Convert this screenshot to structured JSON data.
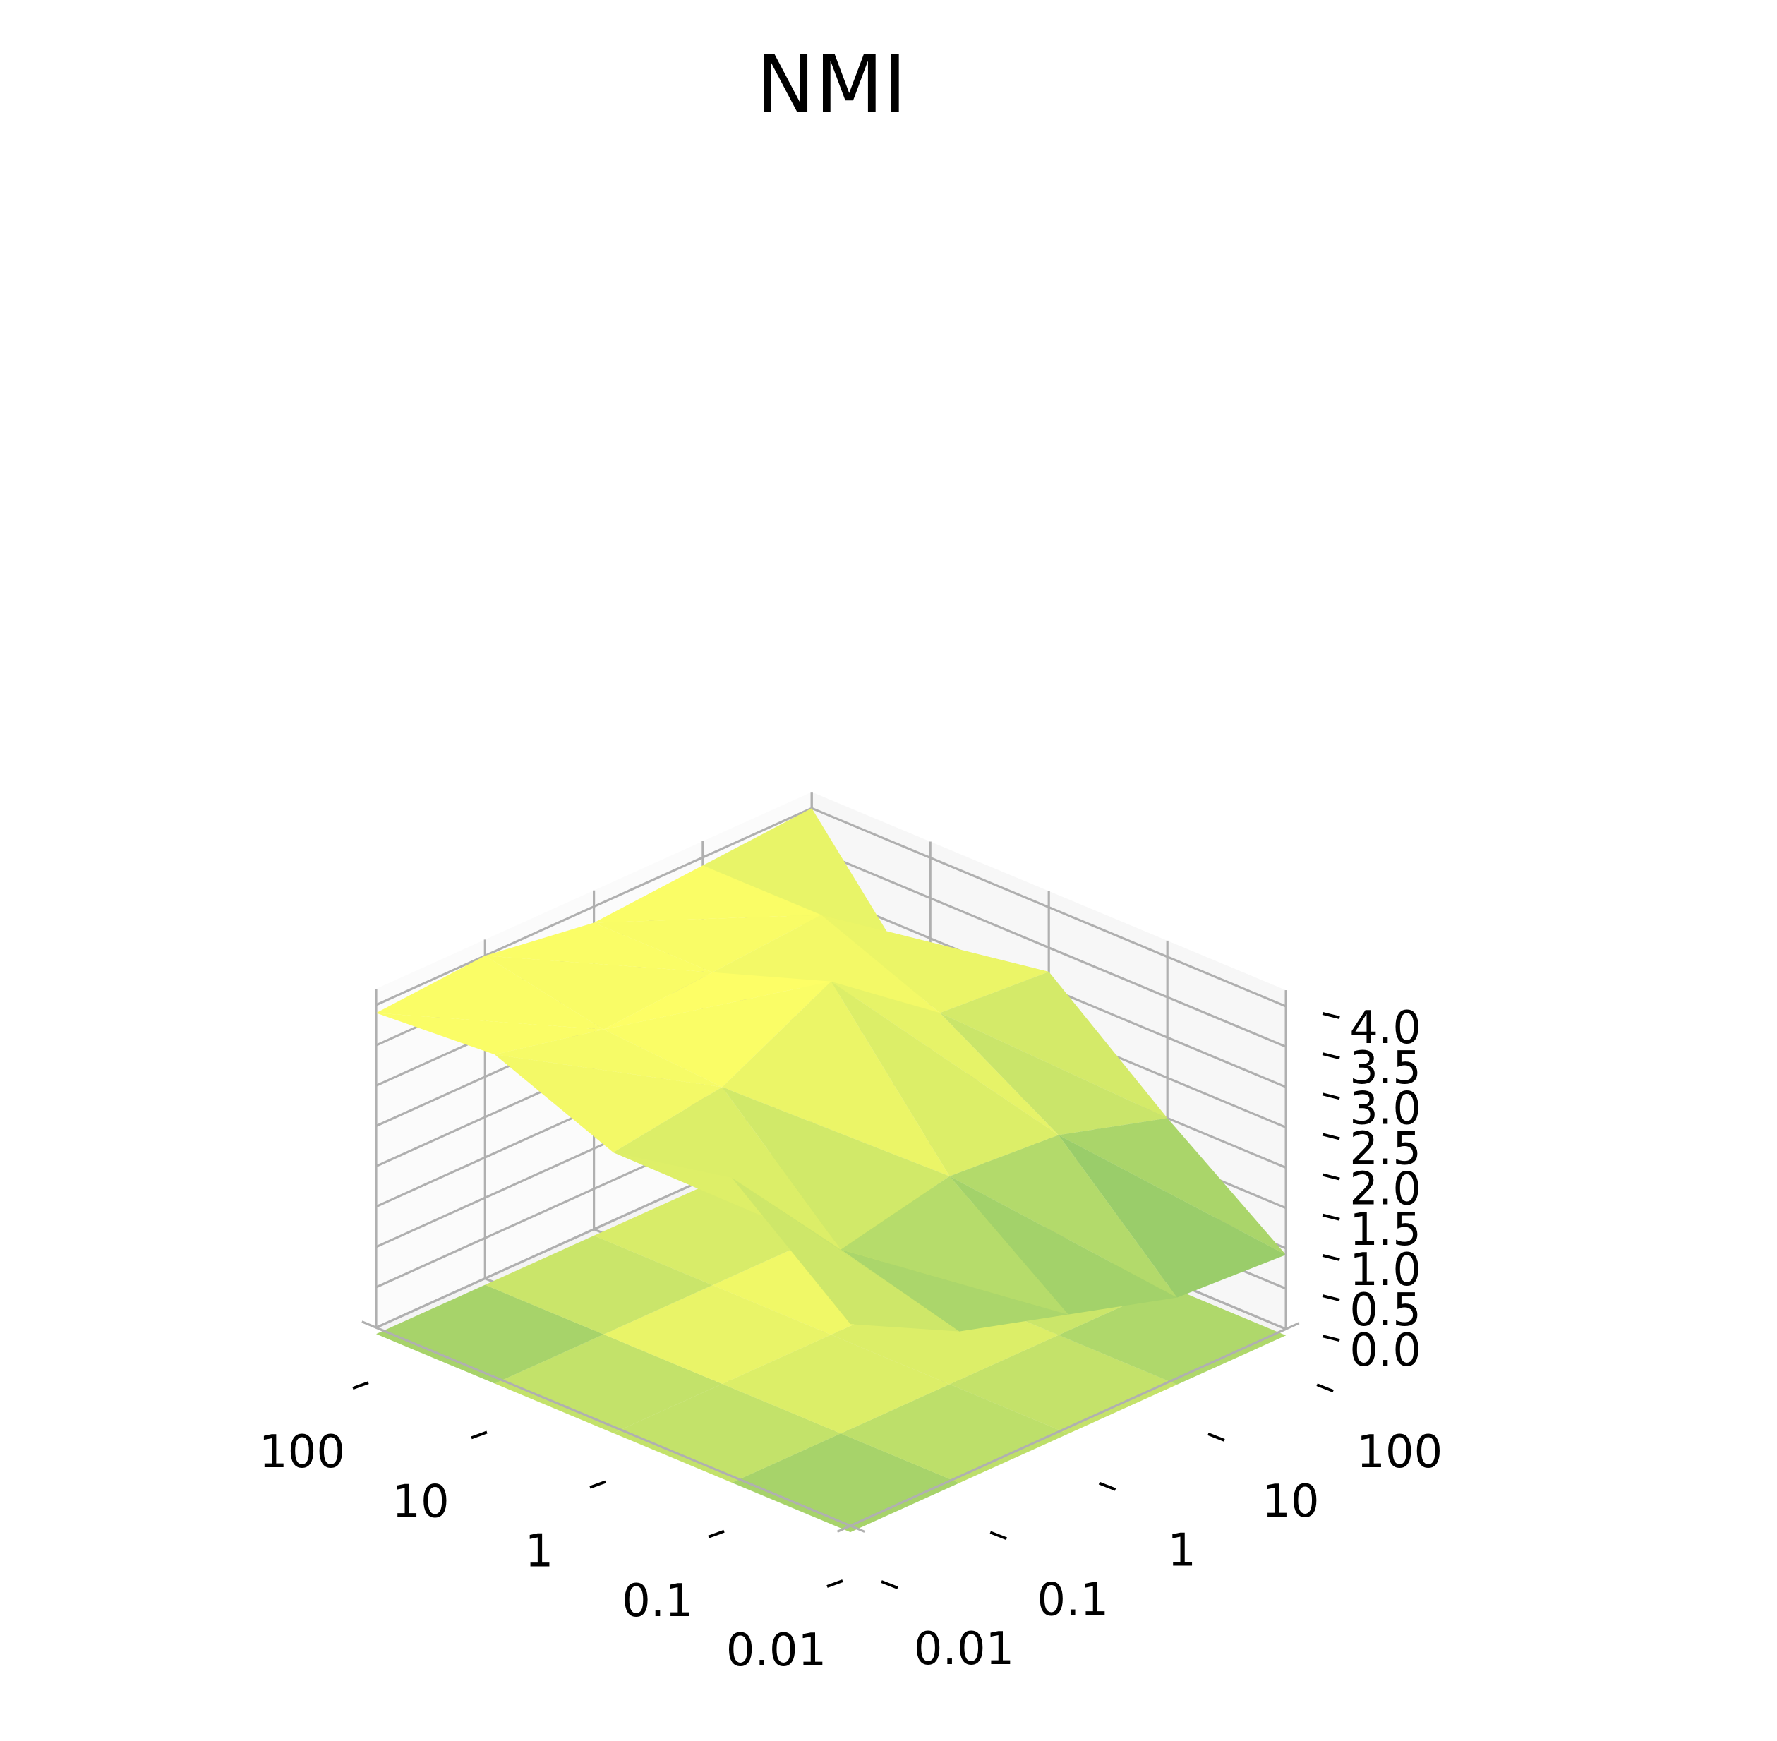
{
  "chart_data": {
    "type": "surface3d",
    "title": "NMI",
    "x_ticks": [
      "0.01",
      "0.1",
      "1",
      "10",
      "100"
    ],
    "y_ticks": [
      "0.01",
      "0.1",
      "1",
      "10",
      "100"
    ],
    "z_ticks": [
      "0.0",
      "0.5",
      "1.0",
      "1.5",
      "2.0",
      "2.5",
      "3.0",
      "3.5",
      "4.0"
    ],
    "zlim": [
      0,
      4
    ],
    "grid": true,
    "colormap": "summer_r",
    "colors": {
      "high": "#ffff66",
      "mid": "#b5db6b",
      "low": "#55a866"
    },
    "surface": [
      [
        2.5,
        1.8,
        1.4,
        1.0,
        0.92
      ],
      [
        3.7,
        2.2,
        2.5,
        2.4,
        2.0
      ],
      [
        3.4,
        3.6,
        4.3,
        3.3,
        3.2
      ],
      [
        4.0,
        3.7,
        3.8,
        3.9,
        2.2
      ],
      [
        3.9,
        4.0,
        3.8,
        3.9,
        4.0
      ]
    ],
    "projection": [
      [
        1.3,
        1.6,
        2.5,
        2.3,
        1.0
      ],
      [
        1.6,
        2.3,
        2.5,
        2.3,
        1.9
      ],
      [
        2.5,
        3.1,
        4.3,
        3.1,
        3.1
      ],
      [
        1.6,
        2.3,
        3.9,
        3.1,
        1.9
      ],
      [
        1.3,
        1.6,
        2.5,
        2.3,
        1.0
      ]
    ]
  }
}
